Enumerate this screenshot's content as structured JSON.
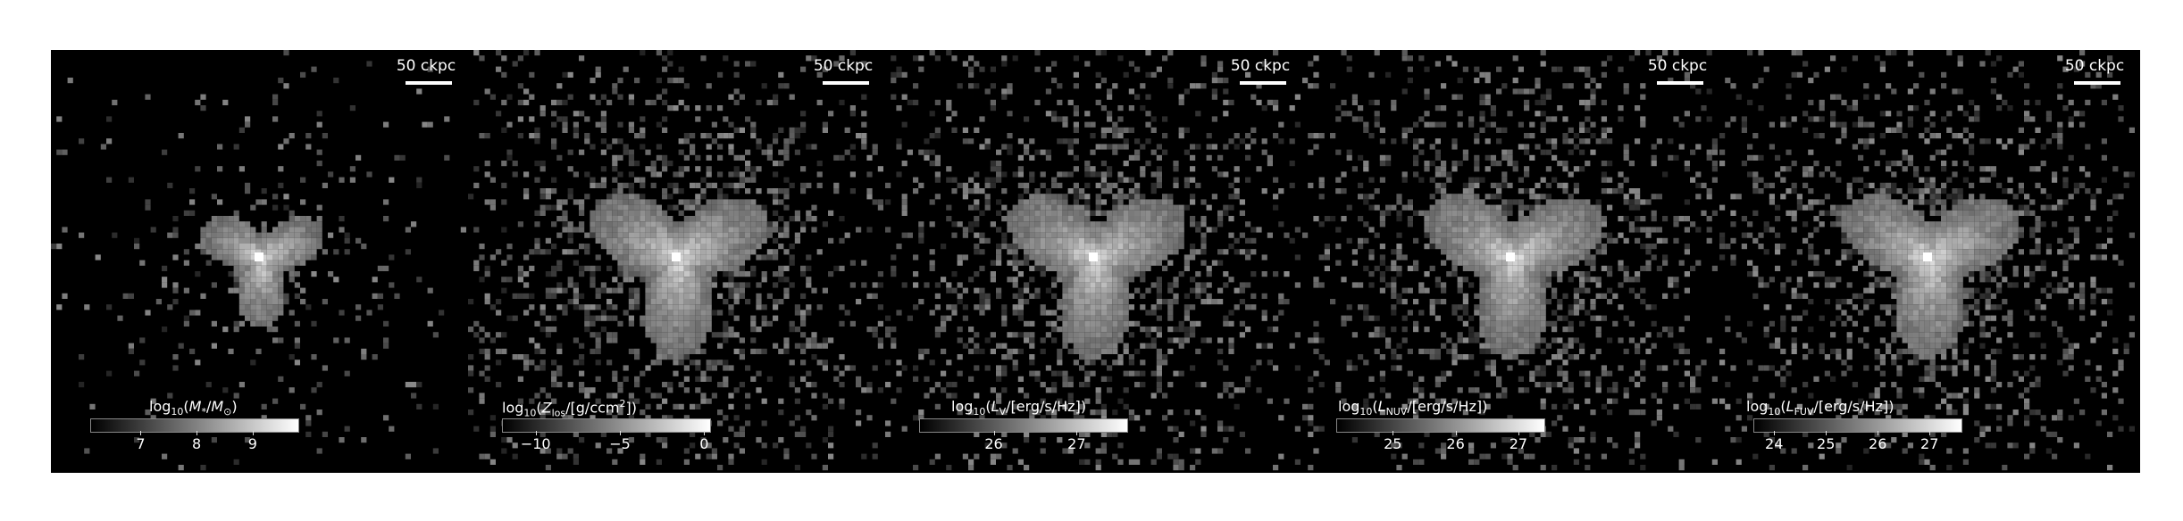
{
  "scalebar_label": "50 ckpc",
  "panels": [
    {
      "id": "mstar",
      "cbar_label": "log10(M*/M⊙)",
      "ticks": [
        {
          "label": "7",
          "value": 7
        },
        {
          "label": "8",
          "value": 8
        },
        {
          "label": "9",
          "value": 9
        }
      ],
      "range": [
        6.1,
        9.8
      ],
      "spread": "compact",
      "seed": 11
    },
    {
      "id": "zlos",
      "cbar_label": "log10(Zlos/[g/ccm2])",
      "ticks": [
        {
          "label": "−10",
          "value": -10
        },
        {
          "label": "−5",
          "value": -5
        },
        {
          "label": "0",
          "value": 0
        }
      ],
      "range": [
        -12.0,
        0.3
      ],
      "spread": "wide",
      "seed": 23
    },
    {
      "id": "lv",
      "cbar_label": "log10(LV/[erg/s/Hz])",
      "ticks": [
        {
          "label": "26",
          "value": 26
        },
        {
          "label": "27",
          "value": 27
        }
      ],
      "range": [
        25.1,
        27.6
      ],
      "spread": "wide",
      "seed": 37
    },
    {
      "id": "lnuv",
      "cbar_label": "log10(LNUV/[erg/s/Hz])",
      "ticks": [
        {
          "label": "25",
          "value": 25
        },
        {
          "label": "26",
          "value": 26
        },
        {
          "label": "27",
          "value": 27
        }
      ],
      "range": [
        24.1,
        27.4
      ],
      "spread": "wide",
      "seed": 41
    },
    {
      "id": "lfuv",
      "cbar_label": "log10(LFUV/[erg/s/Hz])",
      "ticks": [
        {
          "label": "24",
          "value": 24
        },
        {
          "label": "25",
          "value": 25
        },
        {
          "label": "26",
          "value": 26
        },
        {
          "label": "27",
          "value": 27
        }
      ],
      "range": [
        23.6,
        27.6
      ],
      "spread": "wide",
      "seed": 53
    }
  ]
}
